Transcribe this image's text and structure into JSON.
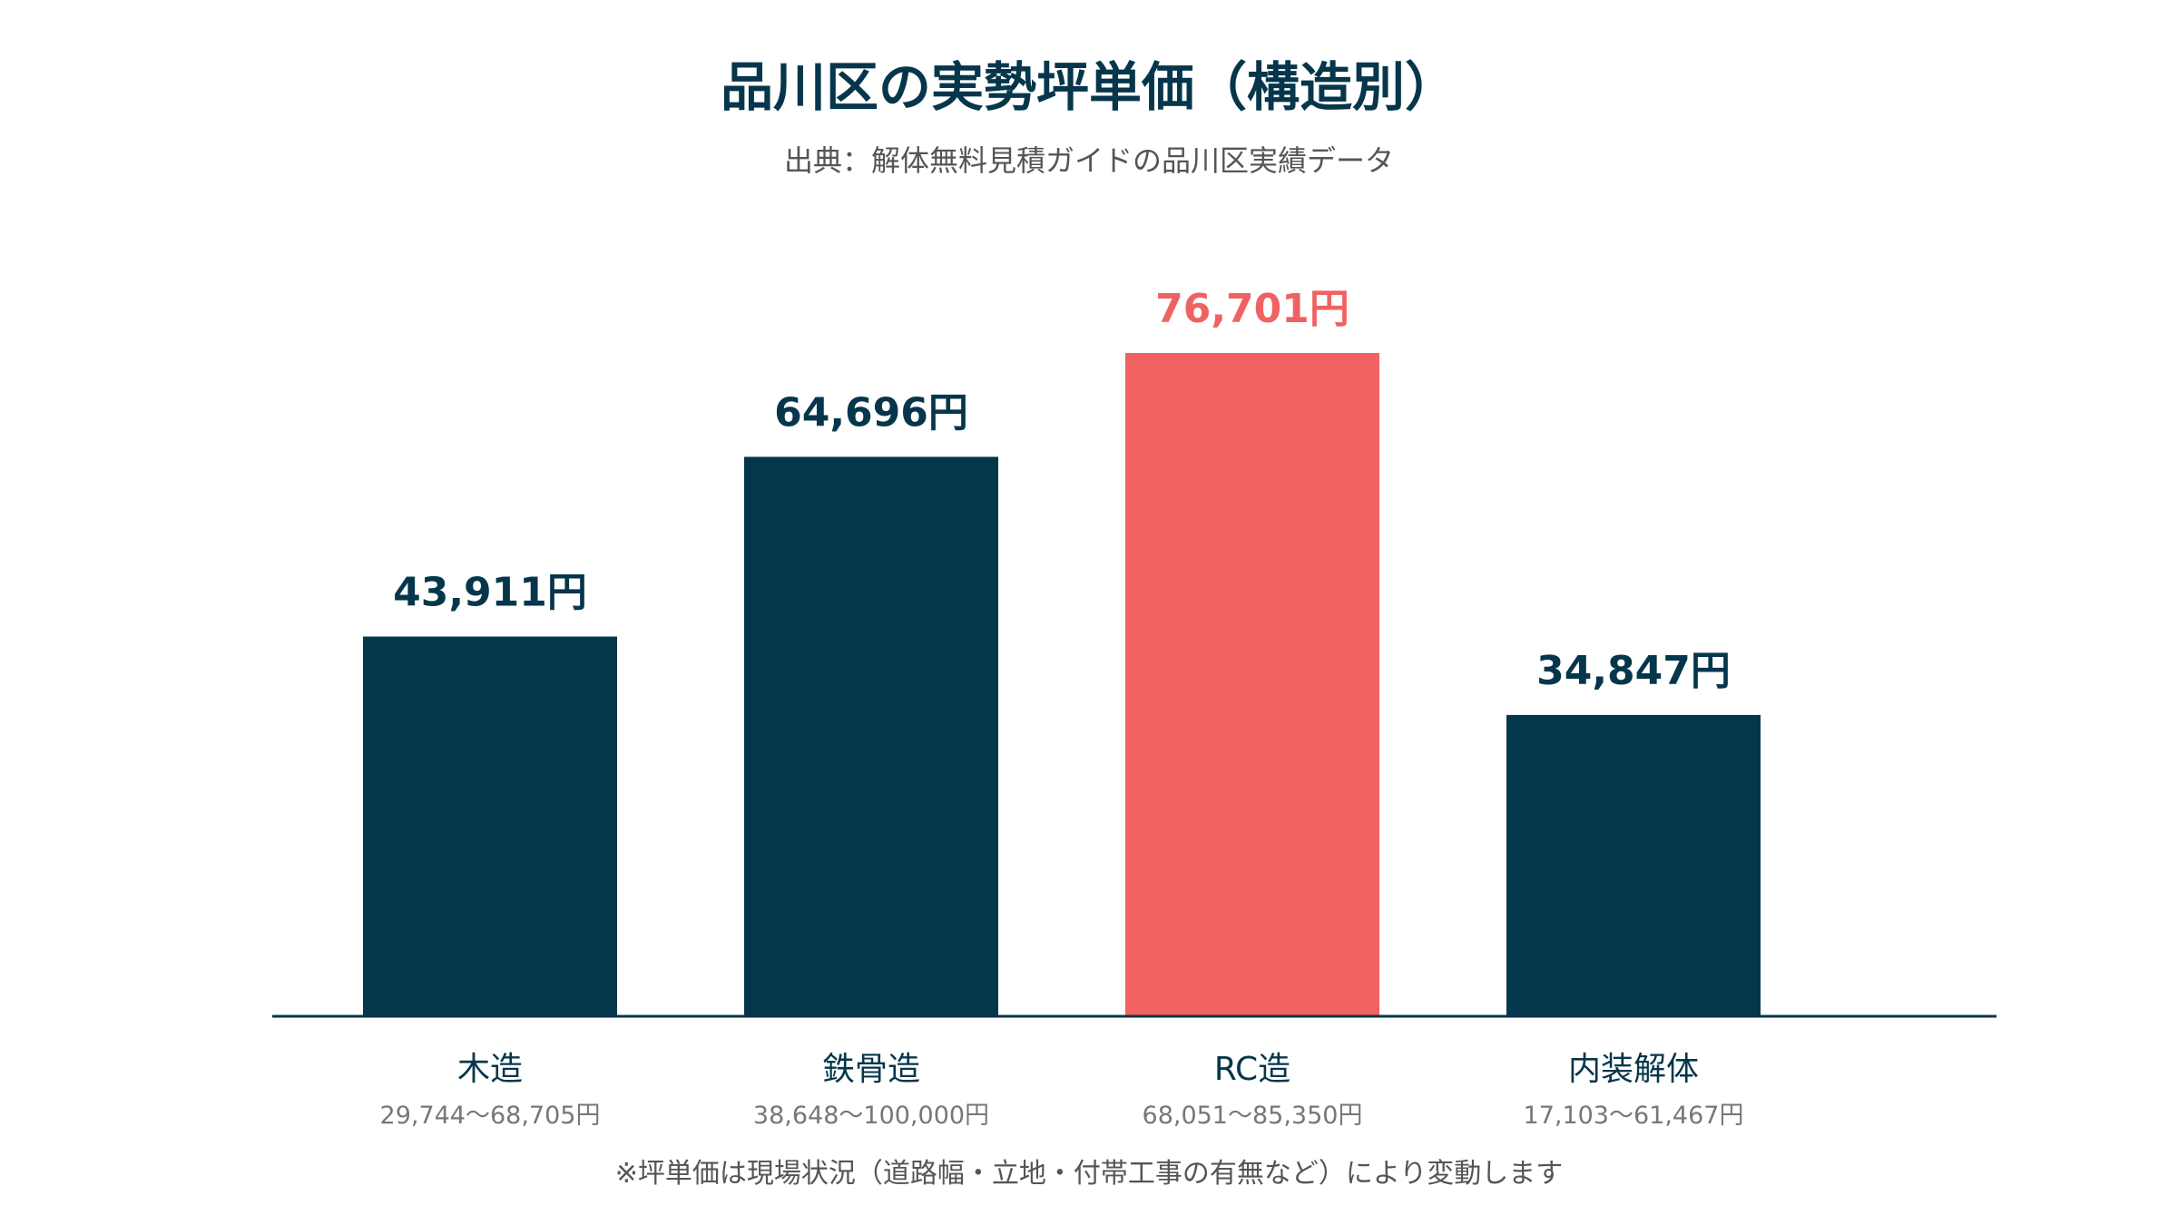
{
  "chart_data": {
    "type": "bar",
    "title": "品川区の実勢坪単価（構造別）",
    "subtitle": "出典：解体無料見積ガイドの品川区実績データ",
    "categories": [
      "木造",
      "鉄骨造",
      "RC造",
      "内装解体"
    ],
    "values": [
      43911,
      64696,
      76701,
      34847
    ],
    "value_labels": [
      "43,911円",
      "64,696円",
      "76,701円",
      "34,847円"
    ],
    "ranges": [
      "29,744〜68,705円",
      "38,648〜100,000円",
      "68,051〜85,350円",
      "17,103〜61,467円"
    ],
    "highlight_index": 2,
    "ylim": [
      0,
      100000
    ],
    "grid": false,
    "xlabel": "",
    "ylabel": "",
    "note": "※坪単価は現場状況（道路幅・立地・付帯工事の有無など）により変動します"
  },
  "colors": {
    "bar": "#06364b",
    "highlight": "#f06262",
    "axis": "#06364b",
    "category_text": "#06364b",
    "range_text": "#777777"
  }
}
